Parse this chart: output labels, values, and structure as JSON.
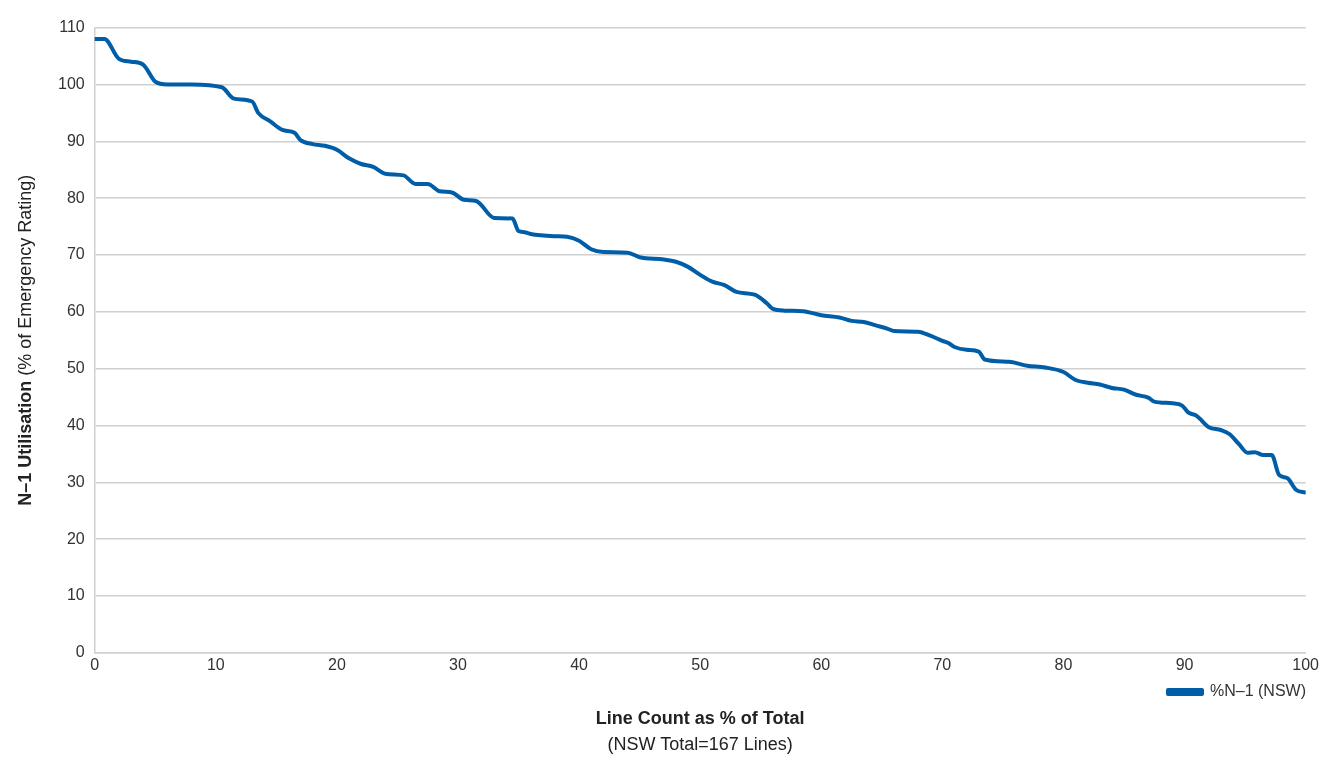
{
  "chart_data": {
    "type": "line",
    "xlabel": "Line Count as % of Total\n(NSW Total=167 Lines)",
    "ylabel": "N–1 Utilisation (% of Emergency Rating)",
    "xlim": [
      0,
      100
    ],
    "xticks": [
      0,
      10,
      20,
      30,
      40,
      50,
      60,
      70,
      80,
      90,
      100
    ],
    "ylim": [
      0,
      110
    ],
    "yticks": [
      0,
      10,
      20,
      30,
      40,
      50,
      60,
      70,
      80,
      90,
      100,
      110
    ],
    "grid": "y",
    "legend": "bottom right",
    "marker": "none",
    "line_style": "solid",
    "series": [
      {
        "name": "%N–1 (NSW)",
        "color": "#005ea8",
        "x": [
          0,
          0.8,
          2,
          3,
          4,
          5,
          6,
          8,
          10.5,
          11.5,
          13,
          13.5,
          14.5,
          15.5,
          16.5,
          17,
          18,
          19,
          20,
          21,
          22,
          23,
          24,
          25.5,
          26.5,
          27.5,
          28.5,
          29.5,
          30.5,
          31.5,
          33,
          34.5,
          35,
          35.5,
          36,
          38,
          39,
          40,
          41,
          42,
          44,
          45,
          47,
          48,
          49,
          50,
          51,
          52,
          53,
          54.5,
          55.5,
          56,
          57,
          58.5,
          60,
          61.5,
          62.5,
          63.5,
          64.5,
          65.5,
          66,
          68,
          69,
          70,
          70.5,
          71,
          72,
          73,
          73.5,
          75.5,
          77,
          78.5,
          80,
          81,
          82,
          83,
          84,
          85,
          86,
          87,
          87.5,
          89,
          89.8,
          90.3,
          91,
          92,
          93,
          93.7,
          94.5,
          95.2,
          95.8,
          96.5,
          97.2,
          97.8,
          98.5,
          99.2,
          100
        ],
        "values": [
          108,
          108,
          104.5,
          104,
          103.5,
          100.5,
          100,
          100,
          99.5,
          97.5,
          97,
          95,
          93.5,
          92,
          91.5,
          90.2,
          89.5,
          89.2,
          88.5,
          87,
          86,
          85.5,
          84.3,
          84,
          82.5,
          82.5,
          81.2,
          81,
          79.7,
          79.5,
          76.5,
          76.4,
          74.2,
          74,
          73.7,
          73.3,
          73.2,
          72.5,
          71,
          70.5,
          70.4,
          69.6,
          69.2,
          68.8,
          67.9,
          66.5,
          65.3,
          64.7,
          63.5,
          63,
          61.5,
          60.5,
          60.2,
          60.1,
          59.4,
          59,
          58.4,
          58.2,
          57.6,
          57,
          56.6,
          56.5,
          55.8,
          54.9,
          54.5,
          53.8,
          53.3,
          53,
          51.6,
          51.2,
          50.5,
          50.2,
          49.4,
          48,
          47.5,
          47.2,
          46.6,
          46.3,
          45.4,
          44.9,
          44.2,
          43.9,
          43.5,
          42.3,
          41.7,
          39.7,
          39.2,
          38.5,
          36.7,
          35.2,
          35.3,
          34.8,
          34.8,
          31.3,
          30.7,
          28.7,
          28.2
        ]
      }
    ]
  }
}
